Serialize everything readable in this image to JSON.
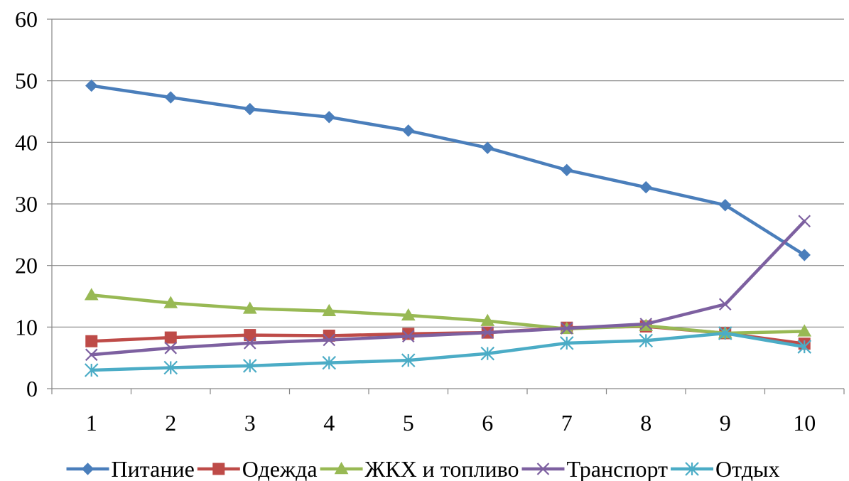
{
  "chart_data": {
    "type": "line",
    "title": "",
    "xlabel": "",
    "ylabel": "",
    "x": [
      1,
      2,
      3,
      4,
      5,
      6,
      7,
      8,
      9,
      10
    ],
    "xlabels": [
      "1",
      "2",
      "3",
      "4",
      "5",
      "6",
      "7",
      "8",
      "9",
      "10"
    ],
    "ylim": [
      0,
      60
    ],
    "yticks": [
      "0",
      "10",
      "20",
      "30",
      "40",
      "50",
      "60"
    ],
    "grid": "horizontal",
    "legend_position": "bottom",
    "series": [
      {
        "name": "Питание",
        "color": "#4a7ebb",
        "marker": "diamond",
        "values": [
          49.2,
          47.3,
          45.4,
          44.1,
          41.9,
          39.1,
          35.5,
          32.7,
          29.8,
          21.7
        ]
      },
      {
        "name": "Одежда",
        "color": "#be4b48",
        "marker": "square",
        "values": [
          7.7,
          8.3,
          8.7,
          8.6,
          8.9,
          9.1,
          9.9,
          10.1,
          9.0,
          7.3
        ]
      },
      {
        "name": "ЖКХ и топливо",
        "color": "#98b954",
        "marker": "triangle",
        "values": [
          15.2,
          13.9,
          13.0,
          12.6,
          11.9,
          11.0,
          9.7,
          10.2,
          9.0,
          9.3
        ]
      },
      {
        "name": "Транспорт",
        "color": "#7d60a0",
        "marker": "x",
        "values": [
          5.5,
          6.6,
          7.4,
          7.9,
          8.5,
          9.1,
          9.8,
          10.5,
          13.7,
          27.2
        ]
      },
      {
        "name": "Отдых",
        "color": "#4bacc6",
        "marker": "star",
        "values": [
          3.0,
          3.4,
          3.7,
          4.2,
          4.6,
          5.7,
          7.4,
          7.8,
          9.0,
          6.8
        ]
      }
    ]
  }
}
